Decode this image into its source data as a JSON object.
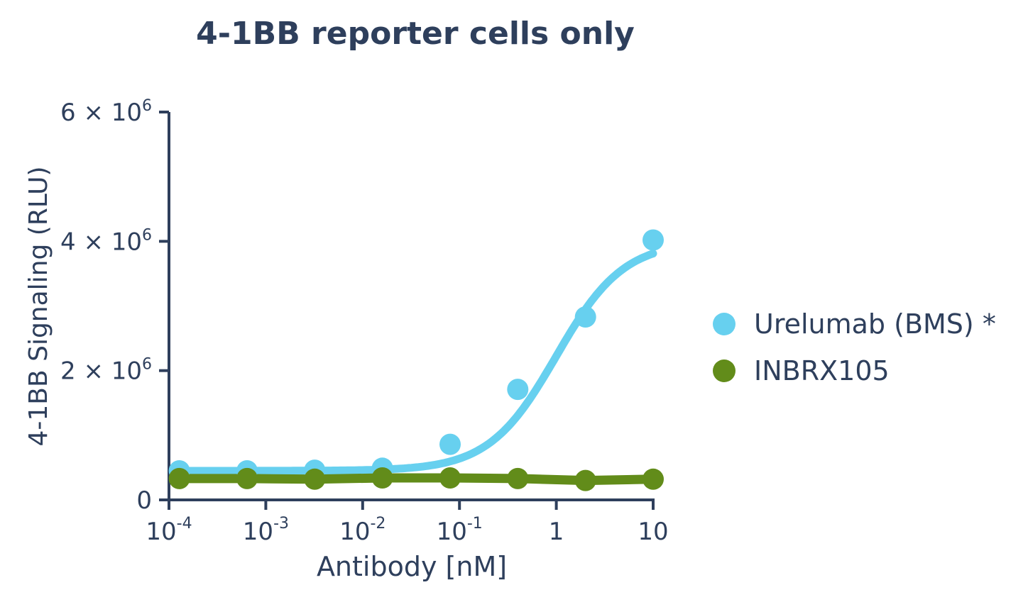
{
  "title": "4-1BB reporter cells only",
  "axes": {
    "x_label": "Antibody [nM]",
    "y_label": "4-1BB Signaling (RLU)",
    "x_ticks": [
      {
        "base": "10",
        "exp": "-4"
      },
      {
        "base": "10",
        "exp": "-3"
      },
      {
        "base": "10",
        "exp": "-2"
      },
      {
        "base": "10",
        "exp": "-1"
      },
      {
        "base": "1",
        "exp": ""
      },
      {
        "base": "10",
        "exp": ""
      }
    ],
    "y_ticks": [
      {
        "label": "0",
        "value": 0
      },
      {
        "label": "2 × 10",
        "exp": "6",
        "value": 2000000
      },
      {
        "label": "4 × 10",
        "exp": "6",
        "value": 4000000
      },
      {
        "label": "6 × 10",
        "exp": "6",
        "value": 6000000
      }
    ]
  },
  "legend": [
    {
      "label": "Urelumab (BMS) *",
      "color": "#67d0ef"
    },
    {
      "label": "INBRX105",
      "color": "#628c1a"
    }
  ],
  "colors": {
    "axis": "#2e3f5c",
    "urelumab": "#67d0ef",
    "inbrx105": "#628c1a"
  },
  "chart_data": {
    "type": "scatter",
    "title": "4-1BB reporter cells only",
    "xlabel": "Antibody [nM]",
    "ylabel": "4-1BB Signaling (RLU)",
    "xscale": "log",
    "xlim": [
      0.0001,
      10
    ],
    "ylim": [
      0,
      6000000
    ],
    "x_tick_labels": [
      "10^-4",
      "10^-3",
      "10^-2",
      "10^-1",
      "1",
      "10"
    ],
    "y_tick_labels": [
      "0",
      "2 × 10^6",
      "4 × 10^6",
      "6 × 10^6"
    ],
    "grid": false,
    "legend_position": "right",
    "series": [
      {
        "name": "Urelumab (BMS) *",
        "color": "#67d0ef",
        "fit": "sigmoidal dose-response curve",
        "x": [
          0.000128,
          0.00064,
          0.0032,
          0.016,
          0.08,
          0.4,
          2,
          10
        ],
        "y": [
          450000,
          450000,
          460000,
          490000,
          860000,
          1710000,
          2830000,
          4020000
        ]
      },
      {
        "name": "INBRX105",
        "color": "#628c1a",
        "fit": "flat curve",
        "x": [
          0.000128,
          0.00064,
          0.0032,
          0.016,
          0.08,
          0.4,
          2,
          10
        ],
        "y": [
          330000,
          330000,
          320000,
          340000,
          340000,
          330000,
          300000,
          320000
        ]
      }
    ]
  }
}
